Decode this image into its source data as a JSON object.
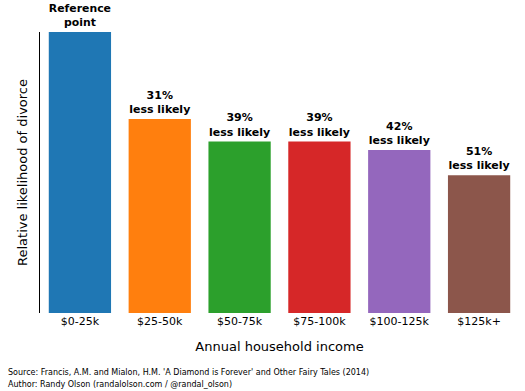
{
  "chart_data": {
    "type": "bar",
    "x_label": "Annual household income",
    "y_label": "Relative likelihood of divorce",
    "categories": [
      "$0-25k",
      "$25-50k",
      "$50-75k",
      "$75-100k",
      "$100-125k",
      "$125k+"
    ],
    "values": [
      100,
      69,
      61,
      61,
      58,
      49
    ],
    "value_labels": [
      "Reference point",
      "31% less likely",
      "39% less likely",
      "39% less likely",
      "42% less likely",
      "51% less likely"
    ],
    "colors": [
      "#1f77b4",
      "#ff7f0e",
      "#2ca02c",
      "#d62728",
      "#9467bd",
      "#8c564b"
    ],
    "ylim": [
      0,
      100
    ],
    "grid": false,
    "data_labels": true,
    "tick_labels": "x",
    "annotations": [
      "Source: Francis, A.M. and Mialon, H.M. 'A Diamond is Forever' and Other Fairy Tales (2014)",
      "Author: Randy Olson (randalolson.com / @randal_olson)"
    ]
  }
}
